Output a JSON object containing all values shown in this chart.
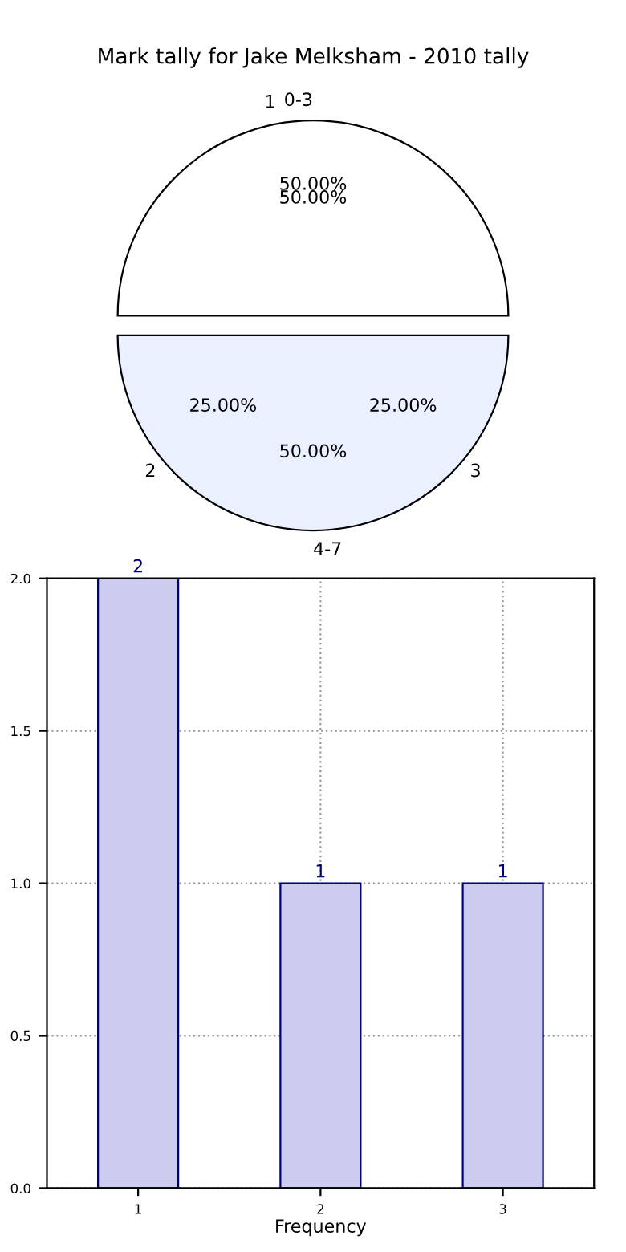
{
  "chart_data": [
    {
      "type": "pie",
      "title": "Mark tally for Jake Melksham - 2010 tally",
      "categories": [
        "0-3",
        "4-7"
      ],
      "values": [
        50,
        50
      ],
      "colors": [
        "#ffffff",
        "#eaf0ff"
      ],
      "value_labels": [
        "50.00%",
        "50.00%"
      ],
      "annotations": [
        "1",
        "50.00%",
        "2",
        "25.00%",
        "3",
        "25.00%"
      ]
    },
    {
      "type": "bar",
      "categories": [
        "1",
        "2",
        "3"
      ],
      "values": [
        2,
        1,
        1
      ],
      "color": "#ccccee",
      "xlabel": "Frequency",
      "ylim": [
        0,
        2
      ],
      "yticks": [
        {
          "value": 0,
          "label": "0.0"
        },
        {
          "value": 0.5,
          "label": "0.5"
        },
        {
          "value": 1,
          "label": "1.0"
        },
        {
          "value": 1.5,
          "label": "1.5"
        },
        {
          "value": 2,
          "label": "2.0"
        }
      ],
      "grid": true,
      "data_labels": true
    }
  ]
}
